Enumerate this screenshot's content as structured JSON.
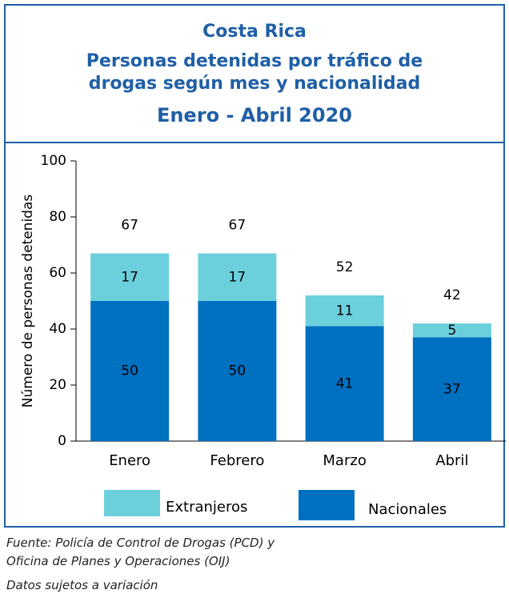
{
  "chart_data": {
    "type": "stacked_bar",
    "title": [
      "Costa Rica",
      "Personas detenidas  por tráfico de",
      "drogas según mes y nacionalidad",
      "Enero - Abril  2020"
    ],
    "y_label": "Número de personas detenidas",
    "categories": [
      "Enero",
      "Febrero",
      "Marzo",
      "Abril"
    ],
    "series": [
      {
        "name": "Nacionales",
        "color": "#0070c0",
        "values": [
          50,
          50,
          41,
          37
        ]
      },
      {
        "name": "Extranjeros",
        "color": "#6ccfdc",
        "values": [
          17,
          17,
          11,
          5
        ]
      }
    ],
    "totals": [
      67,
      67,
      52,
      42
    ],
    "ylim": [
      0,
      100
    ],
    "yticks": [
      0,
      20,
      40,
      60,
      80,
      100
    ],
    "footnotes": [
      "Fuente: Policía de Control de Drogas (PCD) y",
      "Oficina de Planes y Operaciones (OIJ)",
      "Datos sujetos a variación"
    ]
  }
}
